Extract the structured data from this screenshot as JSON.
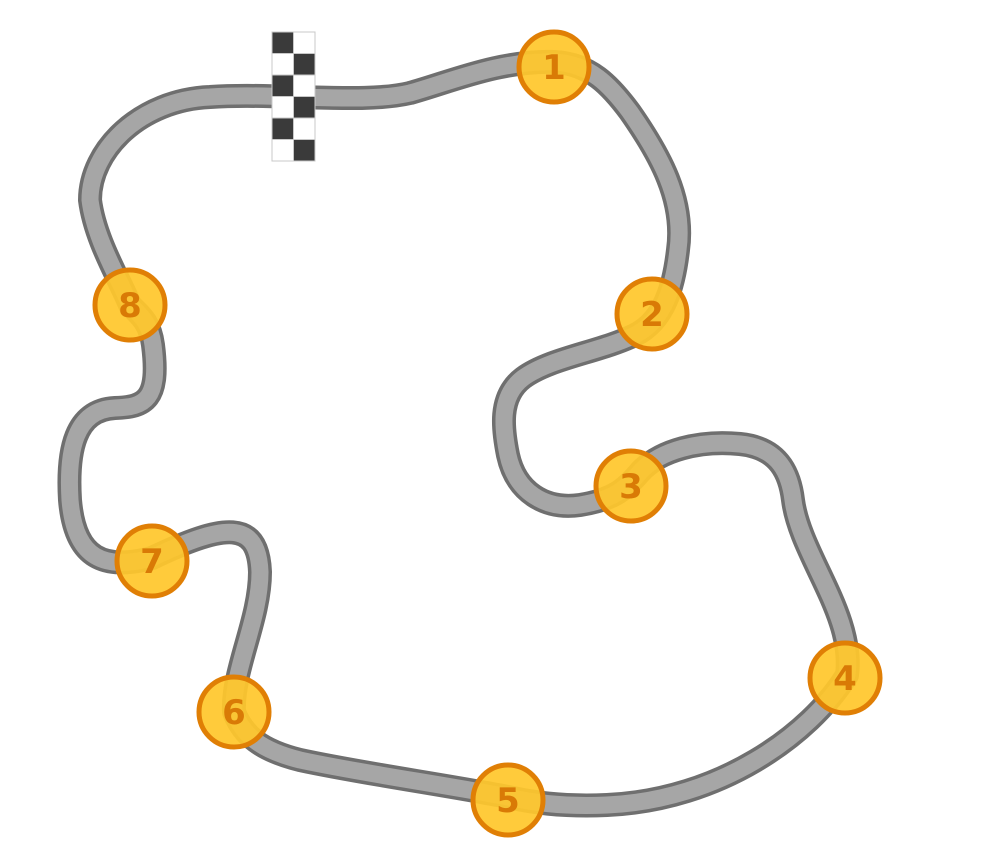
{
  "track": {
    "outline_color": "#6f6f6f",
    "surface_color": "#a6a6a6"
  },
  "finish_line": {
    "icon": "checkered-flag-icon",
    "dark_color": "#3a3a3a",
    "light_color": "#ffffff"
  },
  "checkpoints": {
    "fill_color": "#ffc72c",
    "ring_color": "#e07f05",
    "items": [
      {
        "label": "1"
      },
      {
        "label": "2"
      },
      {
        "label": "3"
      },
      {
        "label": "4"
      },
      {
        "label": "5"
      },
      {
        "label": "6"
      },
      {
        "label": "7"
      },
      {
        "label": "8"
      }
    ]
  }
}
